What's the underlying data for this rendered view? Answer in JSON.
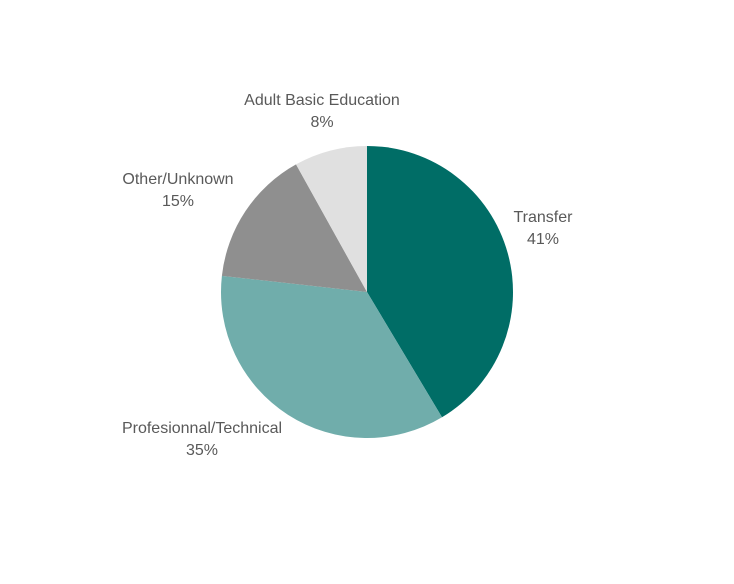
{
  "chart_data": {
    "type": "pie",
    "categories": [
      "Transfer",
      "Profesionnal/Technical",
      "Other/Unknown",
      "Adult Basic Education"
    ],
    "values": [
      41,
      35,
      15,
      8
    ],
    "value_labels": [
      "41%",
      "35%",
      "15%",
      "8%"
    ],
    "colors": [
      "#006d66",
      "#70adab",
      "#8f8f8f",
      "#e0e0e0"
    ]
  }
}
